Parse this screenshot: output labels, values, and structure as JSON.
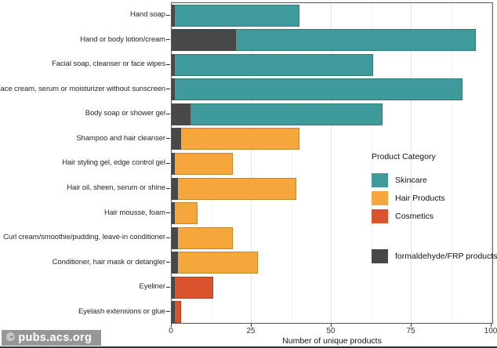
{
  "watermark": "© pubs.acs.org",
  "chart_data": {
    "type": "bar",
    "orientation": "horizontal",
    "xlabel": "Number of unique products",
    "xlim": [
      0,
      100
    ],
    "x_ticks": [
      0,
      25,
      50,
      75,
      100
    ],
    "grid": "major-and-minor-vertical",
    "legend_position": "inside-right",
    "legend_title": "Product Category",
    "legend": [
      {
        "label": "Skincare",
        "color": "#3F9B9B"
      },
      {
        "label": "Hair Products",
        "color": "#F5A73B"
      },
      {
        "label": "Cosmetics",
        "color": "#D9532C"
      }
    ],
    "overlay_legend": {
      "label": "formaldehyde/FRP products",
      "color": "#484848"
    },
    "rows": [
      {
        "label": "Hand soap",
        "category": "Skincare",
        "total": 40,
        "frp": 1
      },
      {
        "label": "Hand or body lotion/cream",
        "category": "Skincare",
        "total": 95,
        "frp": 20
      },
      {
        "label": "Facial soap, cleanser or face wipes",
        "category": "Skincare",
        "total": 63,
        "frp": 1
      },
      {
        "label": "Face cream, serum or moisturizer without sunscreen",
        "category": "Skincare",
        "total": 91,
        "frp": 1
      },
      {
        "label": "Body soap or shower gel",
        "category": "Skincare",
        "total": 66,
        "frp": 6
      },
      {
        "label": "Shampoo and hair cleanser",
        "category": "Hair Products",
        "total": 40,
        "frp": 3
      },
      {
        "label": "Hair styling gel, edge control gel",
        "category": "Hair Products",
        "total": 19,
        "frp": 1
      },
      {
        "label": "Hair oil, sheen, serum or shine",
        "category": "Hair Products",
        "total": 39,
        "frp": 2
      },
      {
        "label": "Hair mousse, foam",
        "category": "Hair Products",
        "total": 8,
        "frp": 1
      },
      {
        "label": "Curl cream/smoothie/pudding, leave-in conditioner",
        "category": "Hair Products",
        "total": 19,
        "frp": 2
      },
      {
        "label": "Conditioner, hair mask or detangler",
        "category": "Hair Products",
        "total": 27,
        "frp": 2
      },
      {
        "label": "Eyeliner",
        "category": "Cosmetics",
        "total": 13,
        "frp": 1
      },
      {
        "label": "Eyelash extensions or glue",
        "category": "Cosmetics",
        "total": 3,
        "frp": 1
      }
    ]
  }
}
